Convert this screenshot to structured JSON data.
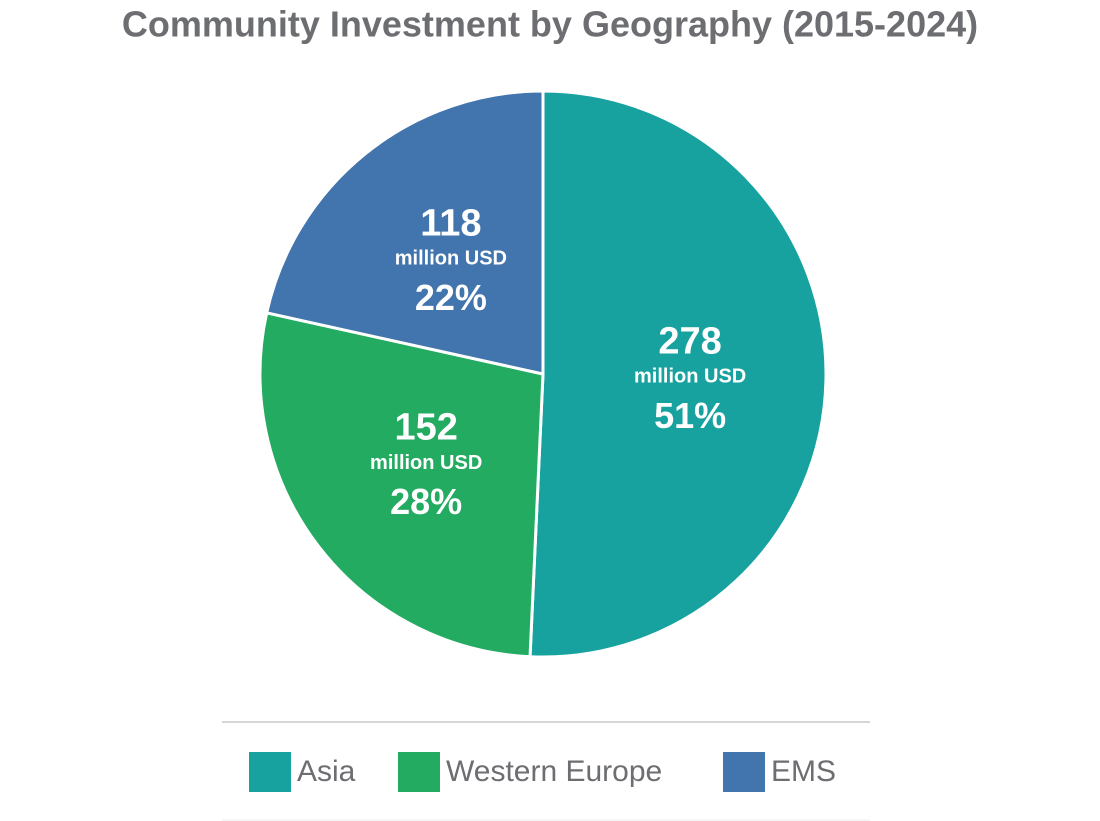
{
  "chart_data": {
    "type": "pie",
    "title": "Community Investment by Geography (2015-2024)",
    "categories": [
      "Asia",
      "Western Europe",
      "EMS"
    ],
    "values": [
      278,
      152,
      118
    ],
    "value_unit": "million USD",
    "percent_labels": [
      "51%",
      "28%",
      "22%"
    ],
    "colors": [
      "#17a2a0",
      "#24ab62",
      "#4274ad"
    ],
    "legend": "bottom"
  }
}
